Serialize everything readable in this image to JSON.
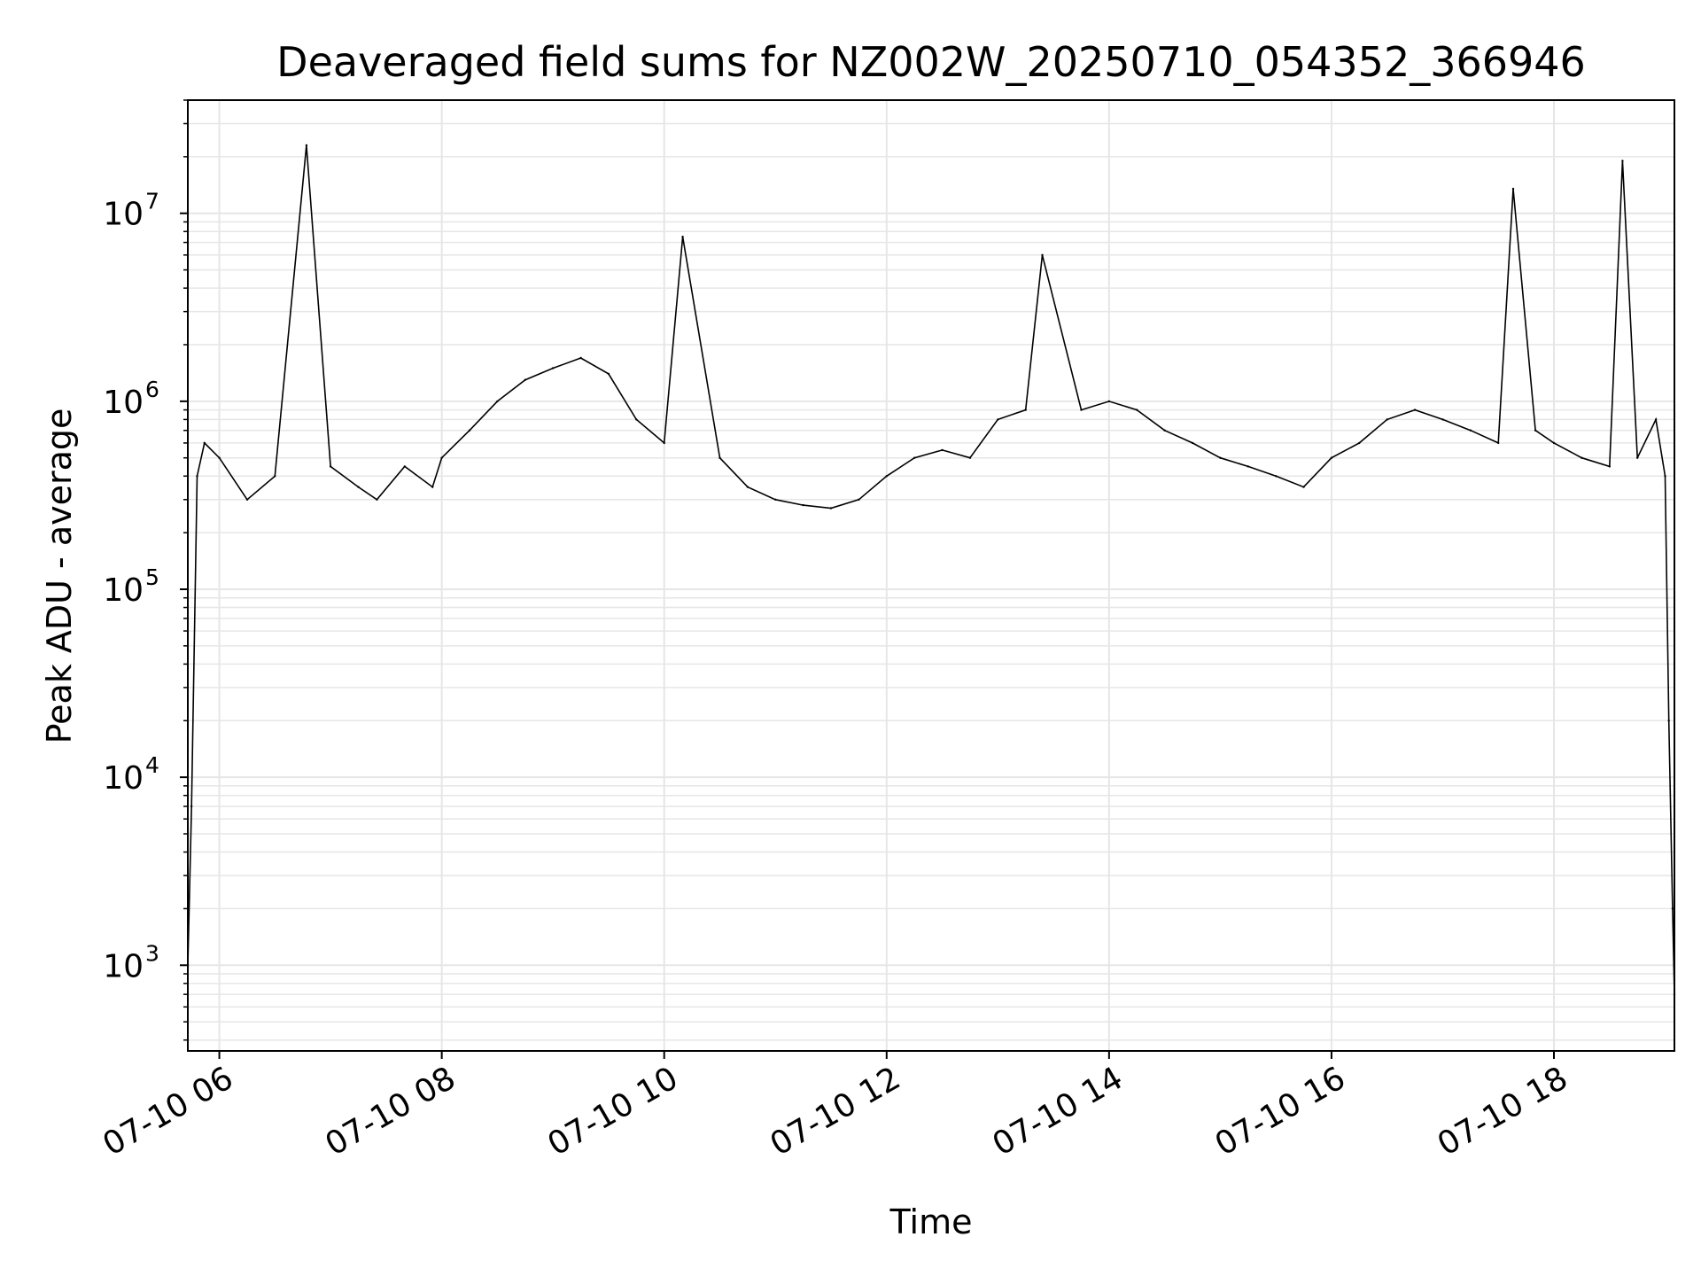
{
  "chart_data": {
    "type": "line",
    "title": "Deaveraged field sums for NZ002W_20250710_054352_366946",
    "xlabel": "Time",
    "ylabel": "Peak ADU - average",
    "y_scale": "log",
    "ylim": [
      350,
      40000000
    ],
    "xlim": [
      "07-10 05:43",
      "07-10 19:05"
    ],
    "x_ticks": [
      "07-10 06",
      "07-10 08",
      "07-10 10",
      "07-10 12",
      "07-10 14",
      "07-10 16",
      "07-10 18"
    ],
    "y_ticks": [
      {
        "value": 1000,
        "base": "10",
        "exp": "3"
      },
      {
        "value": 10000,
        "base": "10",
        "exp": "4"
      },
      {
        "value": 100000,
        "base": "10",
        "exp": "5"
      },
      {
        "value": 1000000,
        "base": "10",
        "exp": "6"
      },
      {
        "value": 10000000,
        "base": "10",
        "exp": "7"
      }
    ],
    "grid": true,
    "line_color": "#000000",
    "grid_color": "#e6e6e6",
    "series": [
      {
        "x": [
          "07-10 05:43",
          "07-10 05:45",
          "07-10 05:48",
          "07-10 05:52",
          "07-10 06:00",
          "07-10 06:15",
          "07-10 06:30",
          "07-10 06:47",
          "07-10 07:00",
          "07-10 07:15",
          "07-10 07:25",
          "07-10 07:40",
          "07-10 07:55",
          "07-10 08:00",
          "07-10 08:15",
          "07-10 08:30",
          "07-10 08:45",
          "07-10 09:00",
          "07-10 09:15",
          "07-10 09:30",
          "07-10 09:45",
          "07-10 10:00",
          "07-10 10:10",
          "07-10 10:30",
          "07-10 10:45",
          "07-10 11:00",
          "07-10 11:15",
          "07-10 11:30",
          "07-10 11:45",
          "07-10 12:00",
          "07-10 12:15",
          "07-10 12:30",
          "07-10 12:45",
          "07-10 13:00",
          "07-10 13:15",
          "07-10 13:24",
          "07-10 13:45",
          "07-10 14:00",
          "07-10 14:15",
          "07-10 14:30",
          "07-10 14:45",
          "07-10 15:00",
          "07-10 15:15",
          "07-10 15:30",
          "07-10 15:45",
          "07-10 16:00",
          "07-10 16:15",
          "07-10 16:30",
          "07-10 16:45",
          "07-10 17:00",
          "07-10 17:15",
          "07-10 17:30",
          "07-10 17:38",
          "07-10 17:50",
          "07-10 18:00",
          "07-10 18:15",
          "07-10 18:30",
          "07-10 18:37",
          "07-10 18:45",
          "07-10 18:55",
          "07-10 19:00",
          "07-10 19:02",
          "07-10 19:04",
          "07-10 19:05"
        ],
        "y": [
          1000,
          7000,
          400000,
          600000,
          500000,
          300000,
          400000,
          23000000,
          450000,
          350000,
          300000,
          450000,
          350000,
          500000,
          700000,
          1000000,
          1300000,
          1500000,
          1700000,
          1400000,
          800000,
          600000,
          7500000,
          500000,
          350000,
          300000,
          280000,
          270000,
          300000,
          400000,
          500000,
          550000,
          500000,
          800000,
          900000,
          6000000,
          900000,
          1000000,
          900000,
          700000,
          600000,
          500000,
          450000,
          400000,
          350000,
          500000,
          600000,
          800000,
          900000,
          800000,
          700000,
          600000,
          13500000,
          700000,
          600000,
          500000,
          450000,
          19000000,
          500000,
          800000,
          400000,
          20000,
          2000,
          700
        ]
      }
    ]
  }
}
